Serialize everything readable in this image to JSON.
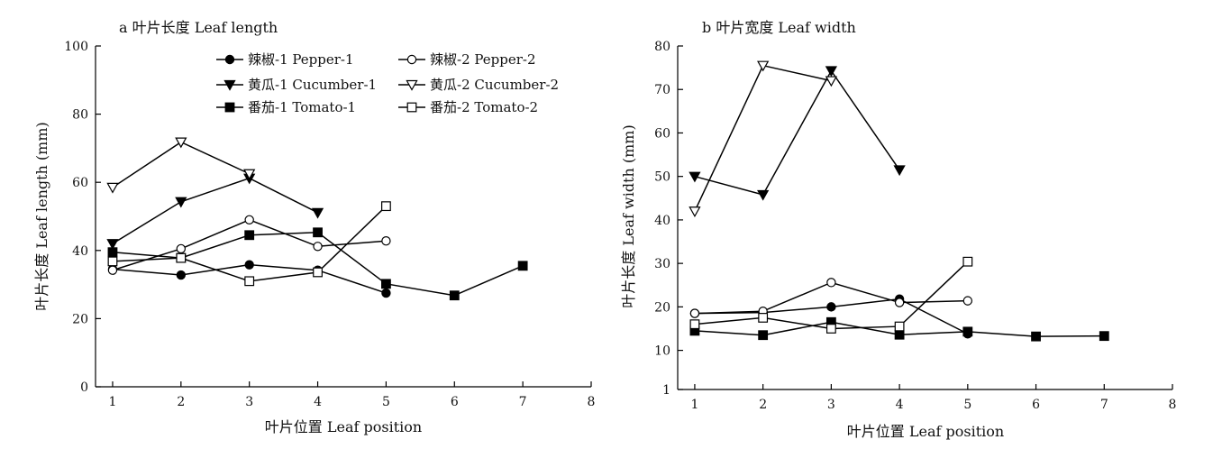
{
  "chart_data": [
    {
      "type": "line",
      "title": "a 叶片长度  Leaf length",
      "xlabel": "叶片位置 Leaf position",
      "ylabel": "叶片长度 Leaf length (mm)",
      "xlim": [
        0.75,
        8
      ],
      "ylim": [
        0,
        100
      ],
      "xticks": [
        1,
        2,
        3,
        4,
        5,
        6,
        7,
        8
      ],
      "yticks": [
        0,
        20,
        40,
        60,
        80,
        100
      ],
      "legend_position": "top",
      "series": [
        {
          "name": "辣椒-1 Pepper-1",
          "marker": "circle-filled",
          "x": [
            1,
            2,
            3,
            4,
            5
          ],
          "values": [
            34.5,
            32.8,
            35.8,
            34.2,
            27.5
          ]
        },
        {
          "name": "辣椒-2 Pepper-2",
          "marker": "circle-open",
          "x": [
            1,
            2,
            3,
            4,
            5
          ],
          "values": [
            34.2,
            40.5,
            49.0,
            41.2,
            42.8
          ]
        },
        {
          "name": "黄瓜-1 Cucumber-1",
          "marker": "triangle-down-filled",
          "x": [
            1,
            2,
            3,
            4
          ],
          "values": [
            42.0,
            54.3,
            61.2,
            51.1
          ]
        },
        {
          "name": "黄瓜-2 Cucumber-2",
          "marker": "triangle-down-open",
          "x": [
            1,
            2,
            3
          ],
          "values": [
            58.5,
            71.8,
            62.5
          ]
        },
        {
          "name": "番茄-1 Tomato-1",
          "marker": "square-filled",
          "x": [
            1,
            2,
            3,
            4,
            5,
            6,
            7
          ],
          "values": [
            39.5,
            37.8,
            44.5,
            45.3,
            30.2,
            26.8,
            35.5
          ]
        },
        {
          "name": "番茄-2 Tomato-2",
          "marker": "square-open",
          "x": [
            1,
            2,
            3,
            4,
            5
          ],
          "values": [
            36.8,
            37.8,
            31.0,
            33.6,
            53.0
          ]
        }
      ]
    },
    {
      "type": "line",
      "title": "b 叶片宽度  Leaf width",
      "xlabel": "叶片位置 Leaf position",
      "ylabel": "叶片长度 Leaf width (mm)",
      "xlim": [
        0.75,
        8
      ],
      "ylim": [
        1,
        80
      ],
      "xticks": [
        1,
        2,
        3,
        4,
        5,
        6,
        7,
        8
      ],
      "yticks": [
        1,
        10,
        20,
        30,
        40,
        50,
        60,
        70,
        80
      ],
      "series": [
        {
          "name": "辣椒-1 Pepper-1",
          "marker": "circle-filled",
          "x": [
            1,
            2,
            3,
            4,
            5
          ],
          "values": [
            18.5,
            18.7,
            20.0,
            21.8,
            13.8
          ]
        },
        {
          "name": "辣椒-2 Pepper-2",
          "marker": "circle-open",
          "x": [
            1,
            2,
            3,
            4,
            5
          ],
          "values": [
            18.5,
            19.0,
            25.6,
            21.0,
            21.4
          ]
        },
        {
          "name": "黄瓜-1 Cucumber-1",
          "marker": "triangle-down-filled",
          "x": [
            1,
            2,
            3,
            4
          ],
          "values": [
            50.0,
            45.8,
            74.3,
            51.5
          ]
        },
        {
          "name": "黄瓜-2 Cucumber-2",
          "marker": "triangle-down-open",
          "x": [
            1,
            2,
            3
          ],
          "values": [
            42.0,
            75.5,
            72.0
          ]
        },
        {
          "name": "番茄-1 Tomato-1",
          "marker": "square-filled",
          "x": [
            1,
            2,
            3,
            4,
            5,
            6,
            7
          ],
          "values": [
            14.5,
            13.5,
            16.5,
            13.6,
            14.3,
            13.2,
            13.3
          ]
        },
        {
          "name": "番茄-2 Tomato-2",
          "marker": "square-open",
          "x": [
            1,
            2,
            3,
            4,
            5
          ],
          "values": [
            16.0,
            17.5,
            15.0,
            15.5,
            30.4
          ]
        }
      ]
    }
  ]
}
